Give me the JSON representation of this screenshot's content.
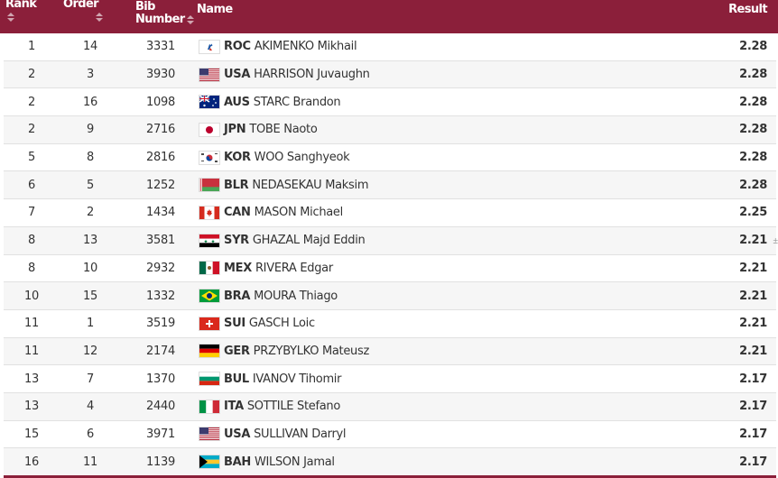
{
  "header": {
    "rank": "Rank",
    "order": "Order",
    "bib_line1": "Bib",
    "bib_line2": "Number",
    "name": "Name",
    "result": "Result"
  },
  "rows": [
    {
      "rank": "1",
      "order": "14",
      "bib": "3331",
      "noc": "ROC",
      "name": "AKIMENKO Mikhail",
      "result": "2.28",
      "flag": "roc"
    },
    {
      "rank": "2",
      "order": "3",
      "bib": "3930",
      "noc": "USA",
      "name": "HARRISON Juvaughn",
      "result": "2.28",
      "flag": "usa"
    },
    {
      "rank": "2",
      "order": "16",
      "bib": "1098",
      "noc": "AUS",
      "name": "STARC Brandon",
      "result": "2.28",
      "flag": "aus"
    },
    {
      "rank": "2",
      "order": "9",
      "bib": "2716",
      "noc": "JPN",
      "name": "TOBE Naoto",
      "result": "2.28",
      "flag": "jpn"
    },
    {
      "rank": "5",
      "order": "8",
      "bib": "2816",
      "noc": "KOR",
      "name": "WOO Sanghyeok",
      "result": "2.28",
      "flag": "kor"
    },
    {
      "rank": "6",
      "order": "5",
      "bib": "1252",
      "noc": "BLR",
      "name": "NEDASEKAU Maksim",
      "result": "2.28",
      "flag": "blr"
    },
    {
      "rank": "7",
      "order": "2",
      "bib": "1434",
      "noc": "CAN",
      "name": "MASON Michael",
      "result": "2.25",
      "flag": "can"
    },
    {
      "rank": "8",
      "order": "13",
      "bib": "3581",
      "noc": "SYR",
      "name": "GHAZAL Majd Eddin",
      "result": "2.21",
      "flag": "syr"
    },
    {
      "rank": "8",
      "order": "10",
      "bib": "2932",
      "noc": "MEX",
      "name": "RIVERA Edgar",
      "result": "2.21",
      "flag": "mex"
    },
    {
      "rank": "10",
      "order": "15",
      "bib": "1332",
      "noc": "BRA",
      "name": "MOURA Thiago",
      "result": "2.21",
      "flag": "bra"
    },
    {
      "rank": "11",
      "order": "1",
      "bib": "3519",
      "noc": "SUI",
      "name": "GASCH Loic",
      "result": "2.21",
      "flag": "sui"
    },
    {
      "rank": "11",
      "order": "12",
      "bib": "2174",
      "noc": "GER",
      "name": "PRZYBYLKO Mateusz",
      "result": "2.21",
      "flag": "ger"
    },
    {
      "rank": "13",
      "order": "7",
      "bib": "1370",
      "noc": "BUL",
      "name": "IVANOV Tihomir",
      "result": "2.17",
      "flag": "bul"
    },
    {
      "rank": "13",
      "order": "4",
      "bib": "2440",
      "noc": "ITA",
      "name": "SOTTILE Stefano",
      "result": "2.17",
      "flag": "ita"
    },
    {
      "rank": "15",
      "order": "6",
      "bib": "3971",
      "noc": "USA",
      "name": "SULLIVAN Darryl",
      "result": "2.17",
      "flag": "usa"
    },
    {
      "rank": "16",
      "order": "11",
      "bib": "1139",
      "noc": "BAH",
      "name": "WILSON Jamal",
      "result": "2.17",
      "flag": "bah"
    }
  ],
  "colors": {
    "header_bg": "#8b1f3a",
    "header_text": "#ffffff"
  }
}
